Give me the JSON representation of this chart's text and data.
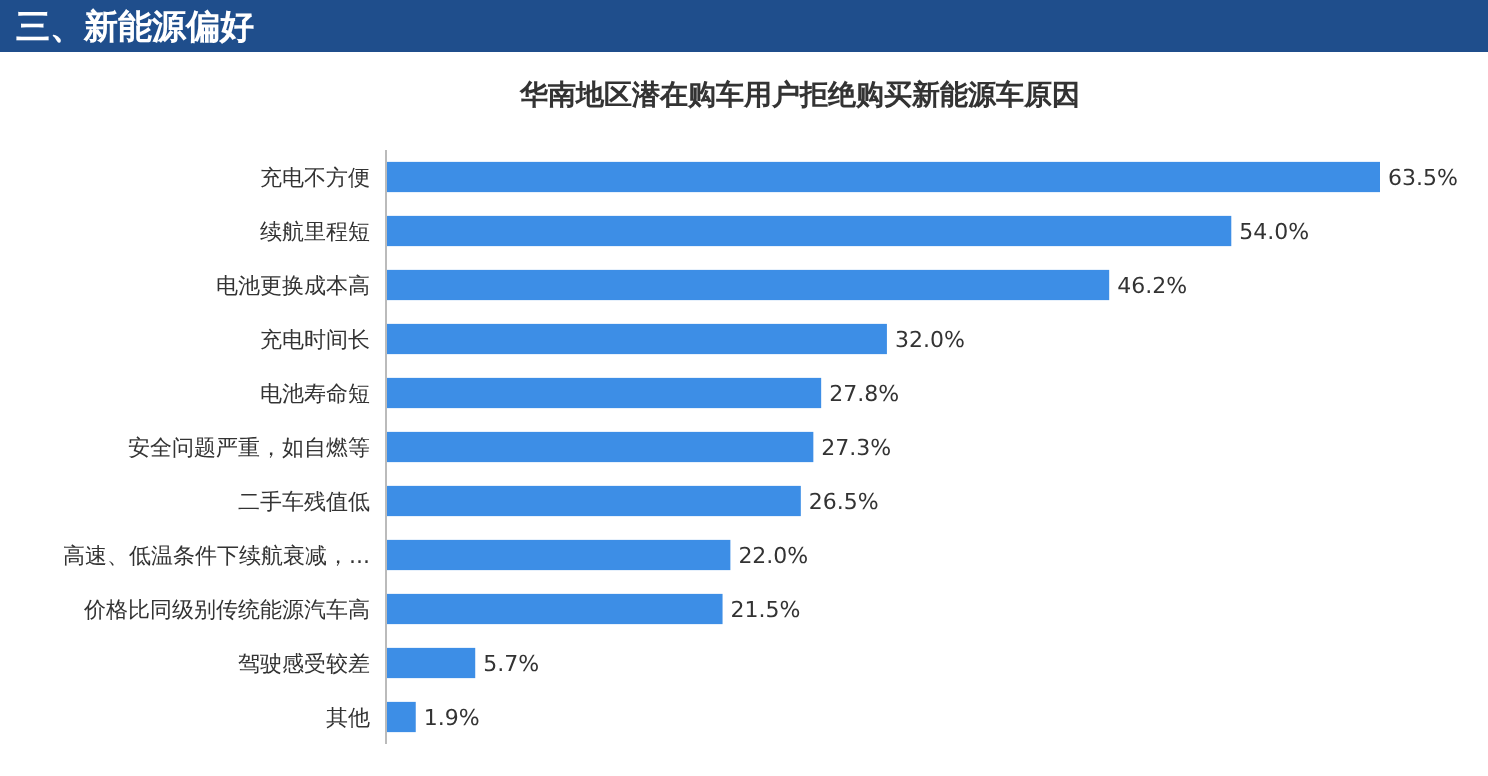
{
  "chart_data": {
    "type": "bar",
    "orientation": "horizontal",
    "title": "华南地区潜在购车用户拒绝购买新能源车原因",
    "annotations": [
      "三、新能源偏好"
    ],
    "categories": [
      "充电不方便",
      "续航里程短",
      "电池更换成本高",
      "充电时间长",
      "电池寿命短",
      "安全问题严重，如自燃等",
      "二手车残值低",
      "高速、低温条件下续航衰减，...",
      "价格比同级别传统能源汽车高",
      "驾驶感受较差",
      "其他"
    ],
    "values": [
      63.5,
      54.0,
      46.2,
      32.0,
      27.8,
      27.3,
      26.5,
      22.0,
      21.5,
      5.7,
      1.9
    ],
    "value_labels": [
      "63.5%",
      "54.0%",
      "46.2%",
      "32.0%",
      "27.8%",
      "27.3%",
      "26.5%",
      "22.0%",
      "21.5%",
      "5.7%",
      "1.9%"
    ],
    "color": "#3d8ee6"
  }
}
